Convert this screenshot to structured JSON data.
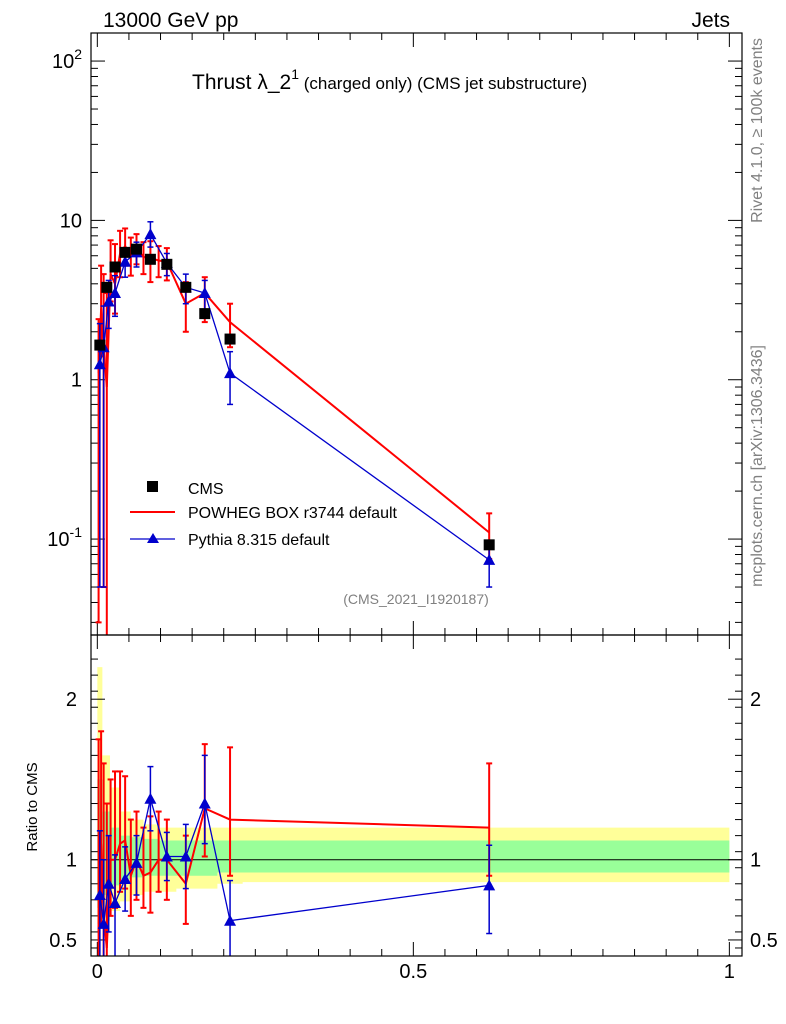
{
  "header": {
    "energy": "13000 GeV pp",
    "category": "Jets"
  },
  "side_labels": {
    "rivet": "Rivet 4.1.0, ≥ 100k events",
    "mcplots": "mcplots.cern.ch [arXiv:1306.3436]"
  },
  "title": {
    "main": "Thrust λ_2",
    "sup": "1",
    "rest": " (charged only) (CMS jet substructure)"
  },
  "analysis_id": "(CMS_2021_I1920187)",
  "ratio_ylabel": "Ratio to CMS",
  "colors": {
    "data": "#000000",
    "powheg": "#ff0000",
    "pythia": "#0000cc",
    "band_outer": "#ffff99",
    "band_inner": "#99ff99"
  },
  "chart_data": [
    {
      "type": "scatter",
      "panel": "main",
      "yscale": "log",
      "title": "Thrust λ_2^1 (charged only) (CMS jet substructure)",
      "xlim": [
        -0.01,
        1.02
      ],
      "ylim": [
        0.025,
        150
      ],
      "ytick_labels": [
        "10^-1",
        "1",
        "10",
        "10^2"
      ],
      "legend": [
        "CMS",
        "POWHEG BOX r3744 default",
        "Pythia 8.315 default"
      ],
      "legend_position": "lower-left",
      "series": [
        {
          "name": "CMS",
          "style": "markers-square",
          "x": [
            0.004,
            0.015,
            0.028,
            0.044,
            0.062,
            0.084,
            0.11,
            0.14,
            0.17,
            0.21,
            0.62
          ],
          "y": [
            1.65,
            3.8,
            5.1,
            6.3,
            6.6,
            5.7,
            5.3,
            3.8,
            2.6,
            1.8,
            0.092
          ]
        },
        {
          "name": "POWHEG BOX r3744 default",
          "style": "line",
          "x": [
            0.002,
            0.006,
            0.01,
            0.015,
            0.021,
            0.028,
            0.036,
            0.044,
            0.053,
            0.062,
            0.073,
            0.084,
            0.097,
            0.11,
            0.14,
            0.17,
            0.21,
            0.62
          ],
          "y": [
            1.1,
            2.8,
            1.6,
            0.9,
            4.6,
            4.0,
            6.2,
            6.9,
            6.0,
            6.7,
            5.9,
            5.8,
            5.6,
            5.5,
            3.0,
            3.5,
            2.3,
            0.11
          ],
          "err_lo": [
            1.07,
            1.4,
            1.55,
            0.88,
            1.5,
            1.4,
            1.8,
            1.7,
            1.5,
            1.4,
            1.3,
            1.7,
            1.2,
            1.3,
            1.0,
            1.2,
            0.7,
            0.035
          ],
          "err_hi": [
            1.3,
            2.4,
            3.0,
            2.6,
            2.9,
            3.1,
            2.4,
            2.0,
            1.8,
            1.5,
            1.4,
            1.6,
            1.3,
            1.2,
            1.1,
            0.9,
            0.7,
            0.035
          ]
        },
        {
          "name": "Pythia 8.315 default",
          "style": "line-triangles",
          "x": [
            0.004,
            0.01,
            0.018,
            0.028,
            0.044,
            0.062,
            0.084,
            0.11,
            0.14,
            0.17,
            0.21,
            0.62
          ],
          "y": [
            1.25,
            1.6,
            3.1,
            3.5,
            5.5,
            6.3,
            8.2,
            5.4,
            3.8,
            3.5,
            1.1,
            0.074
          ],
          "err_lo": [
            1.2,
            1.55,
            1.0,
            1.0,
            1.1,
            1.2,
            1.4,
            0.9,
            0.8,
            0.8,
            0.4,
            0.024
          ],
          "err_hi": [
            1.0,
            1.3,
            1.1,
            1.0,
            1.1,
            1.0,
            1.6,
            0.8,
            0.8,
            0.7,
            0.4,
            0.024
          ]
        }
      ]
    },
    {
      "type": "line",
      "panel": "ratio",
      "ylabel": "Ratio to CMS",
      "xlim": [
        -0.01,
        1.02
      ],
      "ylim": [
        0.4,
        2.4
      ],
      "xtick_labels": [
        "0",
        "0.5",
        "1"
      ],
      "ytick_labels": [
        "0.5",
        "1",
        "2"
      ],
      "band_edges": [
        0.0,
        0.008,
        0.02,
        0.036,
        0.053,
        0.073,
        0.097,
        0.125,
        0.155,
        0.19,
        0.23,
        1.0
      ],
      "band_outer": [
        [
          0.6,
          2.2
        ],
        [
          0.62,
          1.65
        ],
        [
          0.68,
          1.45
        ],
        [
          0.74,
          1.3
        ],
        [
          0.78,
          1.25
        ],
        [
          0.8,
          1.22
        ],
        [
          0.8,
          1.2
        ],
        [
          0.82,
          1.2
        ],
        [
          0.82,
          1.2
        ],
        [
          0.85,
          1.2
        ],
        [
          0.86,
          1.2
        ]
      ],
      "band_inner": [
        [
          0.7,
          1.5
        ],
        [
          0.78,
          1.3
        ],
        [
          0.84,
          1.2
        ],
        [
          0.88,
          1.15
        ],
        [
          0.89,
          1.14
        ],
        [
          0.9,
          1.13
        ],
        [
          0.9,
          1.12
        ],
        [
          0.9,
          1.12
        ],
        [
          0.9,
          1.12
        ],
        [
          0.92,
          1.12
        ],
        [
          0.92,
          1.12
        ]
      ],
      "series": [
        {
          "name": "POWHEG BOX r3744 default",
          "x": [
            0.002,
            0.006,
            0.01,
            0.015,
            0.021,
            0.028,
            0.036,
            0.044,
            0.053,
            0.062,
            0.073,
            0.084,
            0.097,
            0.11,
            0.14,
            0.17,
            0.21,
            0.62
          ],
          "y": [
            0.55,
            1.1,
            0.65,
            0.45,
            1.0,
            1.0,
            1.1,
            1.12,
            0.9,
            1.0,
            0.9,
            0.92,
            1.0,
            1.0,
            0.85,
            1.32,
            1.25,
            1.2
          ],
          "err_lo": [
            0.4,
            0.5,
            0.5,
            0.4,
            0.35,
            0.3,
            0.3,
            0.3,
            0.25,
            0.25,
            0.2,
            0.25,
            0.2,
            0.25,
            0.25,
            0.3,
            0.35,
            0.3
          ],
          "err_hi": [
            1.2,
            0.7,
            0.95,
            0.9,
            0.5,
            0.55,
            0.45,
            0.4,
            0.35,
            0.3,
            0.3,
            0.35,
            0.3,
            0.25,
            0.3,
            0.4,
            0.45,
            0.4
          ]
        },
        {
          "name": "Pythia 8.315 default",
          "x": [
            0.004,
            0.01,
            0.018,
            0.028,
            0.044,
            0.062,
            0.084,
            0.11,
            0.14,
            0.17,
            0.21,
            0.62
          ],
          "y": [
            0.78,
            0.6,
            0.85,
            0.73,
            0.88,
            0.98,
            1.38,
            1.02,
            1.02,
            1.35,
            0.62,
            0.84
          ],
          "err_lo": [
            0.45,
            0.35,
            0.3,
            0.4,
            0.2,
            0.2,
            0.2,
            0.15,
            0.2,
            0.25,
            0.25,
            0.3
          ],
          "err_hi": [
            0.4,
            0.4,
            0.3,
            0.3,
            0.2,
            0.17,
            0.2,
            0.15,
            0.2,
            0.3,
            0.25,
            0.25
          ]
        }
      ]
    }
  ]
}
